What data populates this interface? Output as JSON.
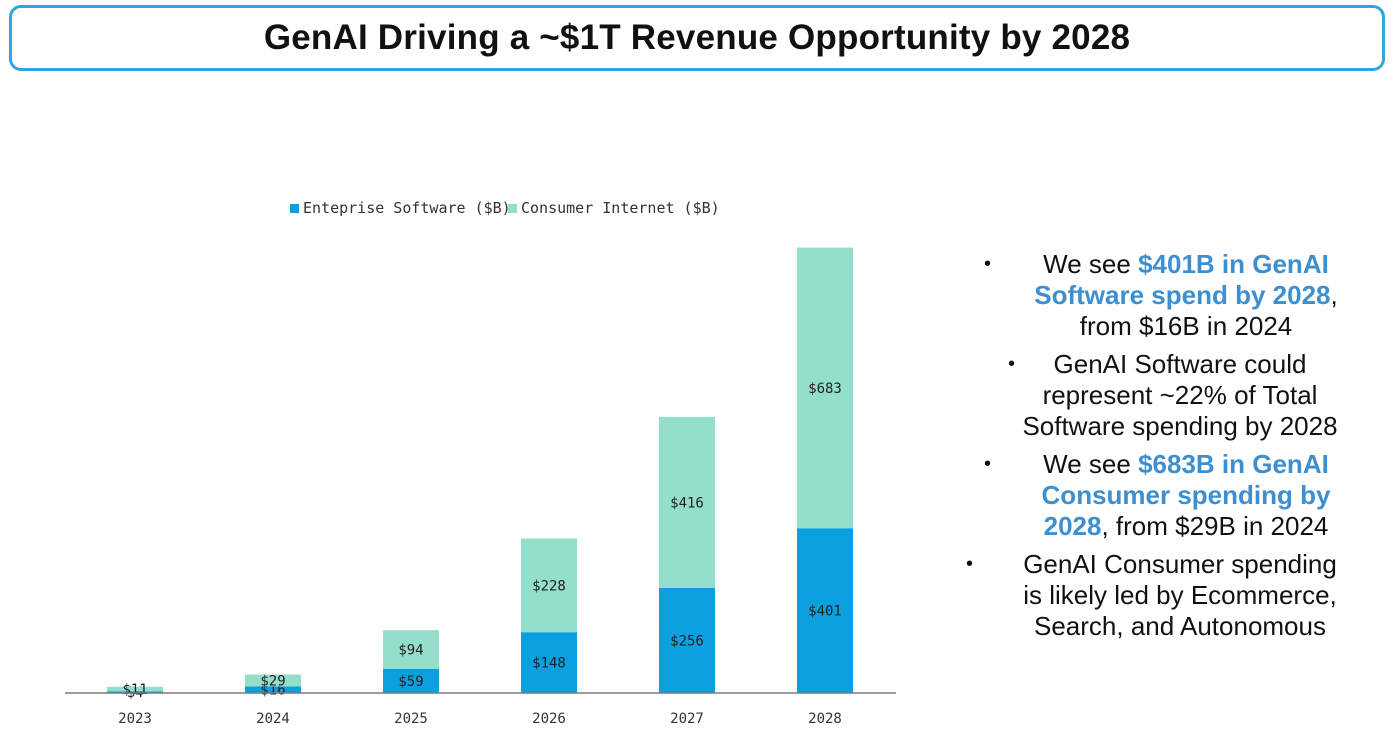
{
  "header": {
    "title": "GenAI Driving a ~$1T Revenue Opportunity by 2028"
  },
  "colors": {
    "enterprise": "#0aa0e0",
    "consumer": "#93dfcb",
    "title_border": "#2ea6e0",
    "highlight": "#3d8fcf"
  },
  "chart_data": {
    "type": "bar",
    "stacked": true,
    "categories": [
      "2023",
      "2024",
      "2025",
      "2026",
      "2027",
      "2028"
    ],
    "series": [
      {
        "name": "Enteprise Software ($B)",
        "values": [
          4,
          16,
          59,
          148,
          256,
          401
        ],
        "labels": [
          "$4",
          "$16",
          "$59",
          "$148",
          "$256",
          "$401"
        ],
        "color": "#0aa0e0"
      },
      {
        "name": "Consumer Internet ($B)",
        "values": [
          11,
          29,
          94,
          228,
          416,
          683
        ],
        "labels": [
          "$11",
          "$29",
          "$94",
          "$228",
          "$416",
          "$683"
        ],
        "color": "#93dfcb"
      }
    ],
    "title": "",
    "xlabel": "",
    "ylabel": "",
    "ylim": [
      0,
      1100
    ],
    "legend": "top",
    "grid": false
  },
  "bullets": [
    {
      "parts": [
        {
          "text": "We see ",
          "hl": false
        },
        {
          "text": "$401B in GenAI",
          "hl": true
        },
        {
          "text": "Software spend by 2028",
          "hl": true
        },
        {
          "text": ",",
          "hl": false
        },
        {
          "text": "from $16B in 2024",
          "hl": false
        }
      ]
    },
    {
      "parts": [
        {
          "text": "GenAI Software could",
          "hl": false
        },
        {
          "text": "represent ~22% of Total",
          "hl": false
        },
        {
          "text": "Software spending by 2028",
          "hl": false
        }
      ]
    },
    {
      "parts": [
        {
          "text": "We see ",
          "hl": false
        },
        {
          "text": "$683B in GenAI",
          "hl": true
        },
        {
          "text": "Consumer spending by",
          "hl": true
        },
        {
          "text": "2028",
          "hl": true
        },
        {
          "text": ", from $29B in 2024",
          "hl": false
        }
      ]
    },
    {
      "parts": [
        {
          "text": "GenAI Consumer spending",
          "hl": false
        },
        {
          "text": "is likely led by Ecommerce,",
          "hl": false
        },
        {
          "text": "Search, and Autonomous",
          "hl": false
        }
      ]
    }
  ]
}
